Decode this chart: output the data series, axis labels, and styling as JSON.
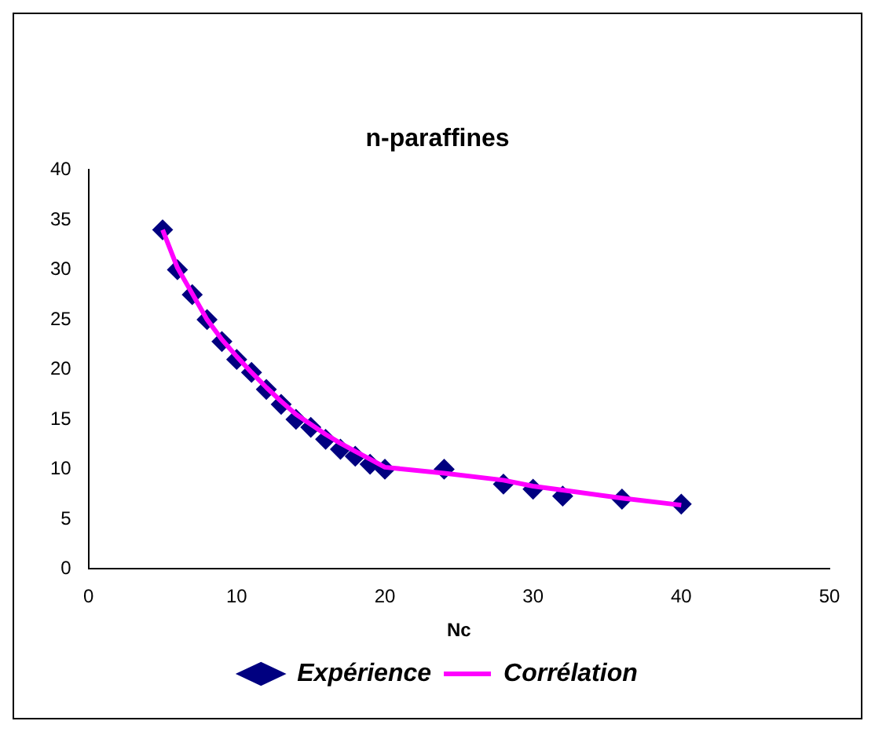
{
  "chart_data": {
    "type": "scatter",
    "title": "n-paraffines",
    "xlabel": "Nc",
    "xlim": [
      0,
      50
    ],
    "xticks": [
      0,
      10,
      20,
      30,
      40,
      50
    ],
    "ylim": [
      0,
      40
    ],
    "yticks": [
      0,
      5,
      10,
      15,
      20,
      25,
      30,
      35,
      40
    ],
    "grid": false,
    "legend": "bottom",
    "series": [
      {
        "name": "Expérience",
        "type": "scatter",
        "marker": "diamond",
        "color": "#000080",
        "x": [
          5,
          6,
          7,
          8,
          9,
          10,
          11,
          12,
          13,
          14,
          15,
          16,
          17,
          18,
          19,
          20,
          24,
          28,
          30,
          32,
          36,
          40
        ],
        "values": [
          34,
          30,
          27.5,
          25,
          22.8,
          21,
          19.7,
          18,
          16.5,
          15,
          14.2,
          13,
          12,
          11.3,
          10.5,
          10,
          10,
          8.5,
          8,
          7.3,
          7,
          6.5
        ]
      },
      {
        "name": "Corrélation",
        "type": "line",
        "marker": "none",
        "line_style": "solid",
        "color": "#ff00ff",
        "x": [
          5,
          6,
          7,
          8,
          9,
          10,
          11,
          12,
          13,
          14,
          15,
          16,
          17,
          18,
          19,
          20,
          24,
          28,
          30,
          32,
          36,
          40
        ],
        "values": [
          34,
          30.2,
          27.6,
          25,
          23,
          21.3,
          19.7,
          18.2,
          16.8,
          15.5,
          14.5,
          13.5,
          12.6,
          11.8,
          11,
          10.2,
          9.6,
          8.9,
          8.3,
          7.9,
          7.1,
          6.4
        ]
      }
    ]
  }
}
